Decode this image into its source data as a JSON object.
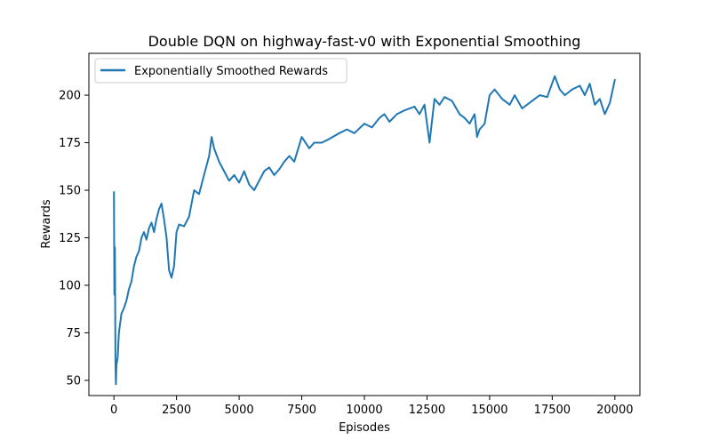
{
  "chart_data": {
    "type": "line",
    "title": "Double DQN on highway-fast-v0 with Exponential Smoothing",
    "xlabel": "Episodes",
    "ylabel": "Rewards",
    "xlim": [
      -1000,
      21000
    ],
    "ylim": [
      42,
      222
    ],
    "xticks": [
      0,
      2500,
      5000,
      7500,
      10000,
      12500,
      15000,
      17500,
      20000
    ],
    "yticks": [
      50,
      75,
      100,
      125,
      150,
      175,
      200
    ],
    "grid": false,
    "legend_position": "top-left",
    "series": [
      {
        "name": "Exponentially Smoothed Rewards",
        "color": "#1f77b4",
        "x": [
          0,
          20,
          40,
          60,
          80,
          100,
          150,
          200,
          300,
          400,
          500,
          600,
          700,
          800,
          900,
          1000,
          1100,
          1200,
          1300,
          1400,
          1500,
          1600,
          1700,
          1800,
          1900,
          2000,
          2100,
          2200,
          2300,
          2400,
          2500,
          2600,
          2800,
          3000,
          3200,
          3400,
          3600,
          3800,
          3900,
          4000,
          4200,
          4400,
          4600,
          4800,
          5000,
          5200,
          5400,
          5600,
          5800,
          6000,
          6200,
          6400,
          6600,
          6800,
          7000,
          7200,
          7500,
          7800,
          8000,
          8300,
          8600,
          9000,
          9300,
          9600,
          10000,
          10300,
          10600,
          10800,
          11000,
          11300,
          11600,
          12000,
          12200,
          12400,
          12600,
          12800,
          13000,
          13200,
          13500,
          13800,
          14000,
          14200,
          14400,
          14500,
          14600,
          14800,
          15000,
          15200,
          15500,
          15800,
          16000,
          16300,
          16600,
          17000,
          17300,
          17600,
          17800,
          18000,
          18300,
          18600,
          18800,
          19000,
          19200,
          19400,
          19600,
          19800,
          20000
        ],
        "values": [
          149,
          95,
          120,
          60,
          48,
          58,
          62,
          75,
          85,
          88,
          92,
          98,
          102,
          110,
          115,
          118,
          125,
          128,
          124,
          130,
          133,
          128,
          135,
          140,
          143,
          135,
          125,
          108,
          104,
          110,
          128,
          132,
          131,
          136,
          150,
          148,
          158,
          168,
          178,
          172,
          165,
          160,
          155,
          158,
          154,
          160,
          153,
          150,
          155,
          160,
          162,
          158,
          161,
          165,
          168,
          165,
          178,
          172,
          175,
          175,
          177,
          180,
          182,
          180,
          185,
          183,
          188,
          190,
          186,
          190,
          192,
          194,
          190,
          195,
          175,
          198,
          195,
          199,
          197,
          190,
          188,
          185,
          190,
          178,
          182,
          185,
          200,
          203,
          198,
          195,
          200,
          193,
          196,
          200,
          199,
          210,
          203,
          200,
          203,
          205,
          200,
          206,
          195,
          198,
          190,
          196,
          208
        ]
      }
    ]
  }
}
